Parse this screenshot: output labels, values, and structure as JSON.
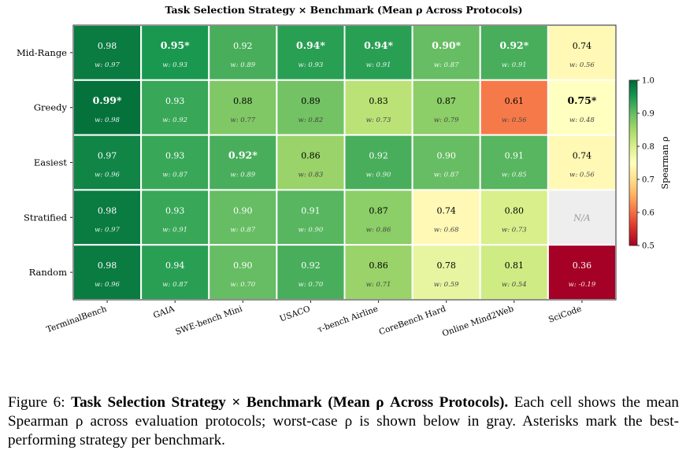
{
  "chart_data": {
    "type": "heatmap",
    "title": "Task Selection Strategy × Benchmark (Mean ρ Across Protocols)",
    "columns": [
      "TerminalBench",
      "GAIA",
      "SWE-bench Mini",
      "USACO",
      "τ-bench Airline",
      "CoreBench Hard",
      "Online Mind2Web",
      "SciCode"
    ],
    "rows": [
      "Mid-Range",
      "Greedy",
      "Easiest",
      "Stratified",
      "Random"
    ],
    "cells": [
      [
        {
          "mean": 0.98,
          "label": "0.98",
          "worst": "w: 0.97",
          "best": false
        },
        {
          "mean": 0.95,
          "label": "0.95*",
          "worst": "w: 0.93",
          "best": true
        },
        {
          "mean": 0.92,
          "label": "0.92",
          "worst": "w: 0.89",
          "best": false
        },
        {
          "mean": 0.94,
          "label": "0.94*",
          "worst": "w: 0.93",
          "best": true
        },
        {
          "mean": 0.94,
          "label": "0.94*",
          "worst": "w: 0.91",
          "best": true
        },
        {
          "mean": 0.9,
          "label": "0.90*",
          "worst": "w: 0.87",
          "best": true
        },
        {
          "mean": 0.92,
          "label": "0.92*",
          "worst": "w: 0.91",
          "best": true
        },
        {
          "mean": 0.74,
          "label": "0.74",
          "worst": "w: 0.56",
          "best": false
        }
      ],
      [
        {
          "mean": 0.99,
          "label": "0.99*",
          "worst": "w: 0.98",
          "best": true
        },
        {
          "mean": 0.93,
          "label": "0.93",
          "worst": "w: 0.92",
          "best": false
        },
        {
          "mean": 0.88,
          "label": "0.88",
          "worst": "w: 0.77",
          "best": false
        },
        {
          "mean": 0.89,
          "label": "0.89",
          "worst": "w: 0.82",
          "best": false
        },
        {
          "mean": 0.83,
          "label": "0.83",
          "worst": "w: 0.73",
          "best": false
        },
        {
          "mean": 0.87,
          "label": "0.87",
          "worst": "w: 0.79",
          "best": false
        },
        {
          "mean": 0.61,
          "label": "0.61",
          "worst": "w: 0.56",
          "best": false
        },
        {
          "mean": 0.75,
          "label": "0.75*",
          "worst": "w: 0.48",
          "best": true
        }
      ],
      [
        {
          "mean": 0.97,
          "label": "0.97",
          "worst": "w: 0.96",
          "best": false
        },
        {
          "mean": 0.93,
          "label": "0.93",
          "worst": "w: 0.87",
          "best": false
        },
        {
          "mean": 0.92,
          "label": "0.92*",
          "worst": "w: 0.89",
          "best": true
        },
        {
          "mean": 0.86,
          "label": "0.86",
          "worst": "w: 0.83",
          "best": false
        },
        {
          "mean": 0.92,
          "label": "0.92",
          "worst": "w: 0.90",
          "best": false
        },
        {
          "mean": 0.9,
          "label": "0.90",
          "worst": "w: 0.87",
          "best": false
        },
        {
          "mean": 0.91,
          "label": "0.91",
          "worst": "w: 0.85",
          "best": false
        },
        {
          "mean": 0.74,
          "label": "0.74",
          "worst": "w: 0.56",
          "best": false
        }
      ],
      [
        {
          "mean": 0.98,
          "label": "0.98",
          "worst": "w: 0.97",
          "best": false
        },
        {
          "mean": 0.93,
          "label": "0.93",
          "worst": "w: 0.91",
          "best": false
        },
        {
          "mean": 0.9,
          "label": "0.90",
          "worst": "w: 0.87",
          "best": false
        },
        {
          "mean": 0.91,
          "label": "0.91",
          "worst": "w: 0.90",
          "best": false
        },
        {
          "mean": 0.87,
          "label": "0.87",
          "worst": "w: 0.86",
          "best": false
        },
        {
          "mean": 0.74,
          "label": "0.74",
          "worst": "w: 0.68",
          "best": false
        },
        {
          "mean": 0.8,
          "label": "0.80",
          "worst": "w: 0.73",
          "best": false
        },
        {
          "mean": null,
          "label": "N/A",
          "worst": "",
          "best": false
        }
      ],
      [
        {
          "mean": 0.98,
          "label": "0.98",
          "worst": "w: 0.96",
          "best": false
        },
        {
          "mean": 0.94,
          "label": "0.94",
          "worst": "w: 0.87",
          "best": false
        },
        {
          "mean": 0.9,
          "label": "0.90",
          "worst": "w: 0.70",
          "best": false
        },
        {
          "mean": 0.92,
          "label": "0.92",
          "worst": "w: 0.70",
          "best": false
        },
        {
          "mean": 0.86,
          "label": "0.86",
          "worst": "w: 0.71",
          "best": false
        },
        {
          "mean": 0.78,
          "label": "0.78",
          "worst": "w: 0.59",
          "best": false
        },
        {
          "mean": 0.81,
          "label": "0.81",
          "worst": "w: 0.54",
          "best": false
        },
        {
          "mean": 0.36,
          "label": "0.36",
          "worst": "w: -0.19",
          "best": false
        }
      ]
    ],
    "colorbar": {
      "label": "Spearman ρ",
      "range": [
        0.5,
        1.0
      ],
      "ticks": [
        "0.5",
        "0.6",
        "0.7",
        "0.8",
        "0.9",
        "1.0"
      ],
      "colormap": "RdYlGn"
    },
    "na_color": "#eeeeee"
  },
  "caption": {
    "prefix": "Figure 6: ",
    "bold": "Task Selection Strategy × Benchmark (Mean ρ Across Protocols).",
    "text": " Each cell shows the mean Spearman ρ across evaluation protocols; worst-case ρ is shown below in gray. Asterisks mark the best-performing strategy per benchmark."
  }
}
